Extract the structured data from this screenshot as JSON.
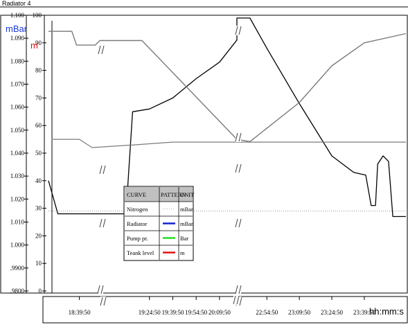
{
  "header": {
    "title": "Radiator 4"
  },
  "units": {
    "mbar": "mBar",
    "m": "m",
    "time": "hh:mm:s"
  },
  "colors": {
    "mbar_label": "#1a3adb",
    "m_label": "#d81010",
    "frame": "#000000",
    "grey_curve": "#7a7a7a",
    "dotted_curve": "#909090",
    "legend_header_bg": "#c0c0c0"
  },
  "chart_data": {
    "type": "line",
    "title": "",
    "xlabel": "hh:mm:s",
    "y_left_ticks": [
      "1.100",
      "1.090",
      "1.080",
      "1.070",
      "1.060",
      "1.050",
      "1.040",
      "1.030",
      "1.020",
      "1.010",
      "1.000",
      ".9900",
      ".9800"
    ],
    "y_left_range": [
      0.98,
      1.1
    ],
    "y_right_ticks": [
      "100",
      "90",
      "80",
      "70",
      "60",
      "50",
      "40",
      "30",
      "20",
      "10",
      "0"
    ],
    "y_right_range": [
      0,
      100
    ],
    "x_ticks": [
      "18:39:50",
      "19:24:50",
      "19:39:50",
      "19:54:50",
      "20:09:50",
      "22:54:50",
      "23:09:50",
      "23:24:50",
      "23:39:50"
    ],
    "x_breaks": [
      "Break between 20:09:50 and 22:54:50"
    ],
    "series": [
      {
        "name": "Nitrogen",
        "pattern": "dotted",
        "unit": "mBar",
        "values": [
          {
            "x": "18:20:00",
            "y": 29
          },
          {
            "x": "23:59:00",
            "y": 29
          }
        ]
      },
      {
        "name": "Radiator",
        "pattern": "solid",
        "unit": "mBar",
        "values": [
          {
            "x": "18:20:00",
            "y": 40
          },
          {
            "x": "18:26:00",
            "y": 28
          },
          {
            "x": "19:09:00",
            "y": 28
          },
          {
            "x": "19:10:00",
            "y": 30
          },
          {
            "x": "19:14:00",
            "y": 65
          },
          {
            "x": "19:24:50",
            "y": 66
          },
          {
            "x": "19:39:50",
            "y": 70
          },
          {
            "x": "19:54:50",
            "y": 77
          },
          {
            "x": "20:09:50",
            "y": 83
          },
          {
            "x": "20:21:00",
            "y": 91
          },
          {
            "x": "22:41:00",
            "y": 99
          },
          {
            "x": "22:47:00",
            "y": 99
          },
          {
            "x": "22:54:50",
            "y": 88
          },
          {
            "x": "23:09:50",
            "y": 68
          },
          {
            "x": "23:24:50",
            "y": 49
          },
          {
            "x": "23:35:00",
            "y": 43
          },
          {
            "x": "23:40:30",
            "y": 42
          },
          {
            "x": "23:43:00",
            "y": 31
          },
          {
            "x": "23:45:00",
            "y": 31
          },
          {
            "x": "23:46:00",
            "y": 46
          },
          {
            "x": "23:48:30",
            "y": 49
          },
          {
            "x": "23:51:00",
            "y": 47
          },
          {
            "x": "23:53:00",
            "y": 27
          },
          {
            "x": "23:59:00",
            "y": 27
          }
        ]
      },
      {
        "name": "Pump pr.",
        "pattern": "solid",
        "unit": "Bar",
        "values": [
          {
            "x": "18:22:00",
            "y": 55
          },
          {
            "x": "18:39:50",
            "y": 55
          },
          {
            "x": "18:48:00",
            "y": 52
          },
          {
            "x": "19:15:00",
            "y": 53
          },
          {
            "x": "19:39:50",
            "y": 54
          },
          {
            "x": "22:54:50",
            "y": 54
          },
          {
            "x": "23:59:00",
            "y": 54
          }
        ]
      },
      {
        "name": "Teank level",
        "pattern": "solid",
        "unit": "m",
        "values": [
          {
            "x": "18:20:00",
            "y": 1.093
          },
          {
            "x": "18:35:00",
            "y": 1.093
          },
          {
            "x": "18:38:00",
            "y": 1.087
          },
          {
            "x": "18:50:00",
            "y": 1.087
          },
          {
            "x": "18:53:00",
            "y": 1.089
          },
          {
            "x": "19:20:00",
            "y": 1.089
          },
          {
            "x": "20:21:00",
            "y": 1.046
          },
          {
            "x": "22:41:00",
            "y": 1.046
          },
          {
            "x": "22:47:00",
            "y": 1.045
          },
          {
            "x": "23:09:50",
            "y": 1.062
          },
          {
            "x": "23:24:50",
            "y": 1.078
          },
          {
            "x": "23:39:50",
            "y": 1.088
          },
          {
            "x": "23:59:00",
            "y": 1.092
          }
        ]
      }
    ],
    "legend": {
      "headers": [
        "CURVE",
        "PATTERN",
        "UNIT"
      ],
      "rows": [
        {
          "curve": "Nitrogen",
          "pattern_color": "#b0b0b0",
          "pattern_style": "dotted",
          "unit": "mBar"
        },
        {
          "curve": "Radiator",
          "pattern_color": "#1020d0",
          "pattern_style": "solid",
          "unit": "mBar"
        },
        {
          "curve": "Pump pr.",
          "pattern_color": "#22dd22",
          "pattern_style": "solid",
          "unit": "Bar"
        },
        {
          "curve": "Teank level",
          "pattern_color": "#e01010",
          "pattern_style": "solid",
          "unit": "m"
        }
      ]
    },
    "grid": false
  }
}
